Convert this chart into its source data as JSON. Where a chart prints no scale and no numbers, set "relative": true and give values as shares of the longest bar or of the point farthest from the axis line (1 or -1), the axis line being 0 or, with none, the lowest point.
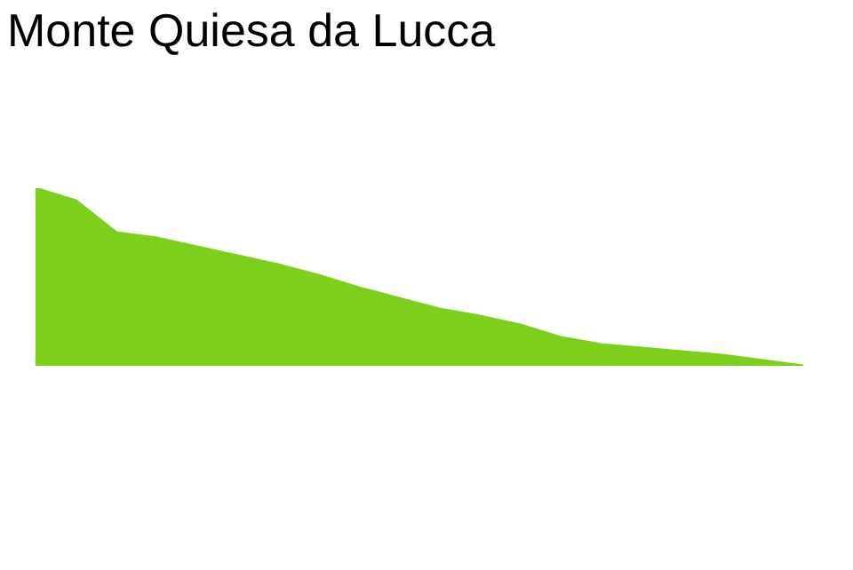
{
  "chart_data": {
    "type": "area",
    "title": "Monte Quiesa da Lucca",
    "relative": true,
    "categories": [
      null,
      null,
      null,
      null,
      null,
      null,
      null,
      null,
      null,
      null,
      null,
      null,
      null,
      null,
      null,
      null,
      null,
      null,
      null,
      null
    ],
    "series": [
      {
        "color": "#7ccf1a",
        "values": [
          1,
          0.93,
          0.75,
          0.72,
          0.67,
          0.62,
          0.57,
          0.51,
          0.44,
          0.38,
          0.32,
          0.28,
          0.23,
          0.16,
          0.12,
          0.1,
          0.08,
          0.06,
          0.03,
          0
        ]
      }
    ],
    "legend": false
  }
}
